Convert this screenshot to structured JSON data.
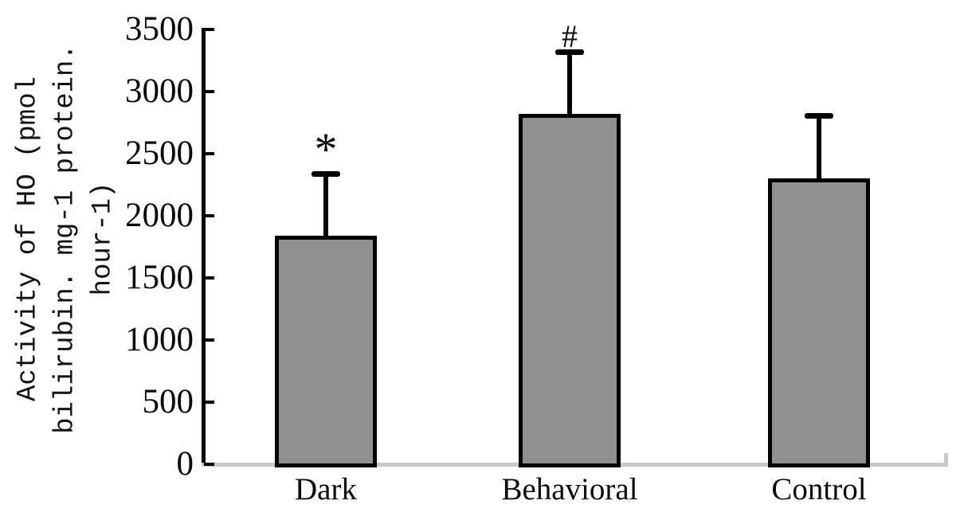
{
  "figure": {
    "background": "#ffffff",
    "bar_fill": "#909090",
    "bar_border": "#000000",
    "axis_color": "#000000",
    "baseline_color": "#c9c9c9",
    "text_color": "#0a0a0a"
  },
  "chart_data": {
    "type": "bar",
    "title": "",
    "ylabel": "Activity of HO (pmol bilirubin. mg-1 protein. hour-1)",
    "ylabel_lines": [
      "Activity of HO (pmol",
      "bilirubin. mg-1 protein.",
      "hour-1)"
    ],
    "xlabel": "",
    "categories": [
      "Dark",
      "Behavioral",
      "Control"
    ],
    "values": [
      1840,
      2820,
      2300
    ],
    "errors": [
      500,
      500,
      510
    ],
    "annotations": [
      "*",
      "#",
      ""
    ],
    "ylim": [
      0,
      3500
    ],
    "yticks": [
      0,
      500,
      1000,
      1500,
      2000,
      2500,
      3000,
      3500
    ],
    "grid": "off",
    "legend": "none"
  }
}
